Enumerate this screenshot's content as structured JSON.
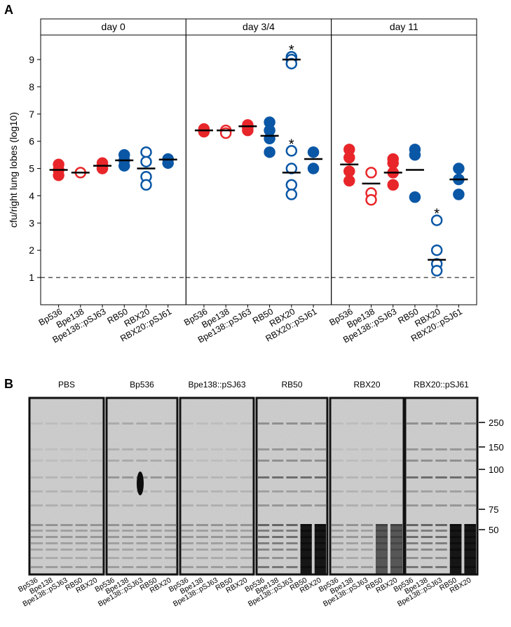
{
  "panel_labels": [
    "A",
    "B"
  ],
  "chart_data": [
    {
      "type": "strip",
      "title": "day 0",
      "ylabel": "cfu/right lung lobes (log10)",
      "ylim": [
        0,
        9.9
      ],
      "yticks": [
        1,
        2,
        3,
        4,
        5,
        6,
        7,
        8,
        9
      ],
      "reference_line": 1,
      "categories": [
        "Bp536",
        "Bpe138",
        "Bpe138::pSJ63",
        "RB50",
        "RBX20",
        "RBX20::pSJ61"
      ],
      "groups": [
        {
          "category": "Bp536",
          "color": "#e8262a",
          "filled": true,
          "values": [
            5.15,
            4.95,
            4.75
          ],
          "mean": 4.95
        },
        {
          "category": "Bpe138",
          "color": "#e8262a",
          "filled": false,
          "values": [
            4.85
          ],
          "mean": 4.85
        },
        {
          "category": "Bpe138::pSJ63",
          "color": "#e8262a",
          "filled": true,
          "values": [
            5.2,
            5.1,
            5.0
          ],
          "mean": 5.1
        },
        {
          "category": "RB50",
          "color": "#0a57a6",
          "filled": true,
          "values": [
            5.5,
            5.3,
            5.1
          ],
          "mean": 5.3
        },
        {
          "category": "RBX20",
          "color": "#0a57a6",
          "filled": false,
          "values": [
            5.6,
            5.25,
            4.7,
            4.4
          ],
          "mean": 5.0
        },
        {
          "category": "RBX20::pSJ61",
          "color": "#0a57a6",
          "filled": true,
          "values": [
            5.35,
            5.2
          ],
          "mean": 5.33
        }
      ]
    },
    {
      "type": "strip",
      "title": "day 3/4",
      "ylim": [
        0,
        9.9
      ],
      "reference_line": 1,
      "categories": [
        "Bp536",
        "Bpe138",
        "Bpe138::pSJ63",
        "RB50",
        "RBX20",
        "RBX20::pSJ61"
      ],
      "groups": [
        {
          "category": "Bp536",
          "color": "#e8262a",
          "filled": true,
          "values": [
            6.45,
            6.4,
            6.35
          ],
          "mean": 6.4
        },
        {
          "category": "Bpe138",
          "color": "#e8262a",
          "filled": false,
          "values": [
            6.4,
            6.3
          ],
          "mean": 6.4
        },
        {
          "category": "Bpe138::pSJ63",
          "color": "#e8262a",
          "filled": true,
          "values": [
            6.6,
            6.5,
            6.4
          ],
          "mean": 6.55
        },
        {
          "category": "RB50",
          "color": "#0a57a6",
          "filled": true,
          "values": [
            6.7,
            6.4,
            6.1,
            5.6
          ],
          "mean": 6.2
        },
        {
          "category": "RBX20",
          "color": "#0a57a6",
          "filled": false,
          "values": [
            9.1,
            9.0,
            8.85
          ],
          "mean": 9.0,
          "annotation": "*"
        },
        {
          "category": "RBX20",
          "color": "#0a57a6",
          "filled": false,
          "values": [
            5.65,
            5.0,
            4.4,
            4.05
          ],
          "mean": 4.85,
          "annotation": "*"
        },
        {
          "category": "RBX20::pSJ61",
          "color": "#0a57a6",
          "filled": true,
          "values": [
            5.6,
            5.0
          ],
          "mean": 5.35
        }
      ]
    },
    {
      "type": "strip",
      "title": "day 11",
      "ylim": [
        0,
        9.9
      ],
      "reference_line": 1,
      "categories": [
        "Bp536",
        "Bpe138",
        "Bpe138::pSJ63",
        "RB50",
        "RBX20",
        "RBX20::pSJ61"
      ],
      "groups": [
        {
          "category": "Bp536",
          "color": "#e8262a",
          "filled": true,
          "values": [
            5.7,
            5.4,
            4.9,
            4.55
          ],
          "mean": 5.15
        },
        {
          "category": "Bpe138",
          "color": "#e8262a",
          "filled": false,
          "values": [
            4.85,
            4.1,
            3.85
          ],
          "mean": 4.45
        },
        {
          "category": "Bpe138::pSJ63",
          "color": "#e8262a",
          "filled": true,
          "values": [
            5.35,
            5.2,
            4.85,
            4.4
          ],
          "mean": 4.85
        },
        {
          "category": "RB50",
          "color": "#0a57a6",
          "filled": true,
          "values": [
            5.7,
            5.5,
            3.95
          ],
          "mean": 4.95
        },
        {
          "category": "RBX20",
          "color": "#0a57a6",
          "filled": false,
          "values": [
            3.1,
            2.0,
            1.5,
            1.25
          ],
          "mean": 1.65,
          "annotation": "*"
        },
        {
          "category": "RBX20::pSJ61",
          "color": "#0a57a6",
          "filled": true,
          "values": [
            5.0,
            4.6,
            4.05
          ],
          "mean": 4.6
        }
      ]
    }
  ],
  "blot": {
    "titles": [
      "PBS",
      "Bp536",
      "Bpe138::pSJ63",
      "RB50",
      "RBX20",
      "RBX20::pSJ61"
    ],
    "lanes": [
      "Bp536",
      "Bpe138",
      "Bpe138::pSJ63",
      "RB50",
      "RBX20"
    ],
    "markers": [
      "250",
      "150",
      "100",
      "75",
      "50"
    ]
  }
}
